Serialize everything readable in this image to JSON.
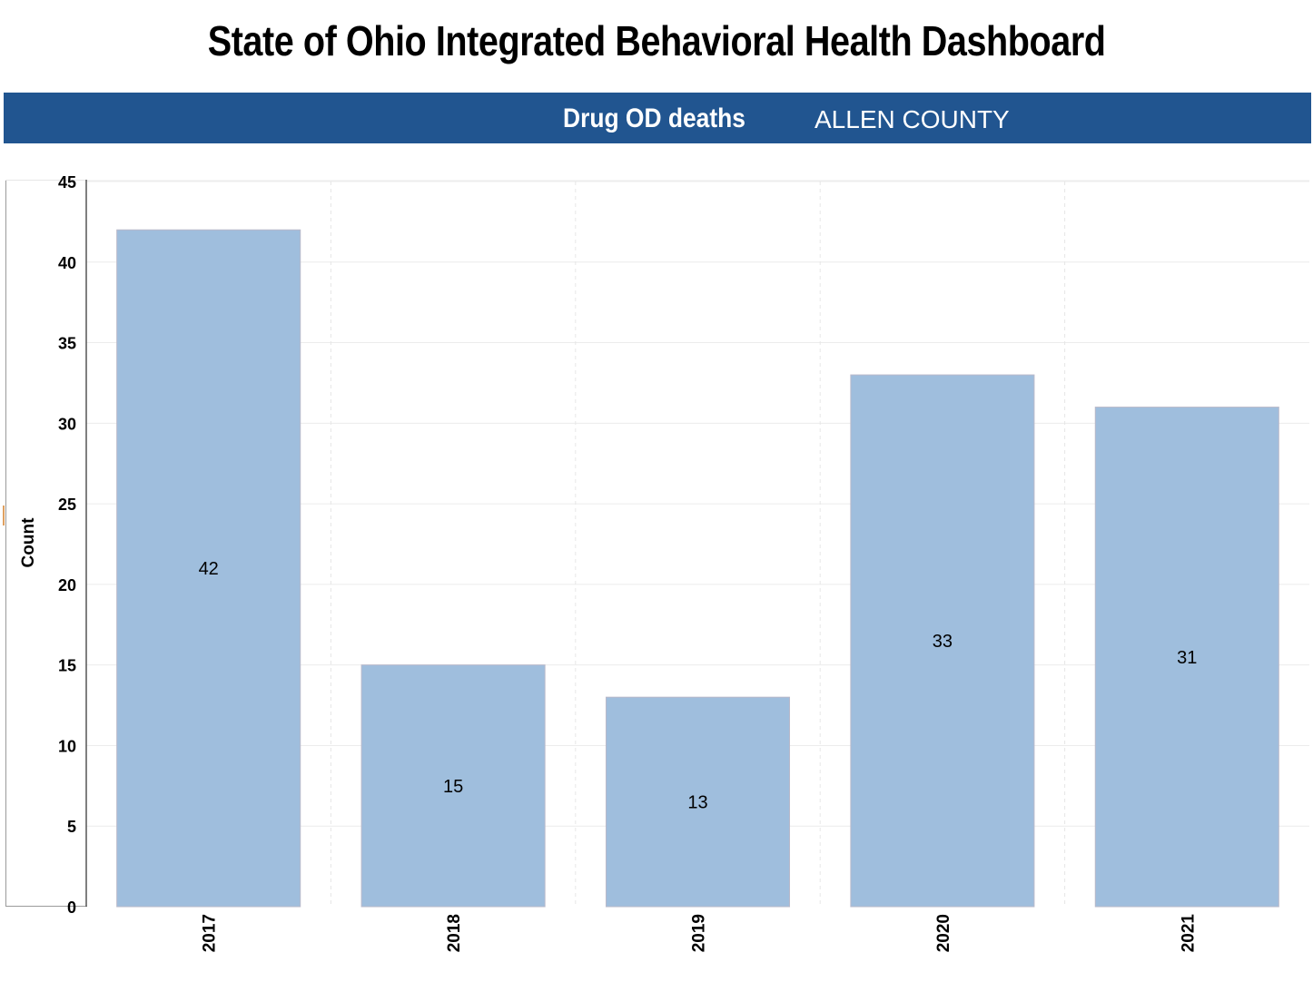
{
  "page": {
    "title": "State of Ohio Integrated Behavioral Health Dashboard"
  },
  "banner": {
    "metric": "Drug OD deaths",
    "county": "ALLEN COUNTY",
    "background_color": "#215590"
  },
  "chart_data": {
    "type": "bar",
    "categories": [
      "2017",
      "2018",
      "2019",
      "2020",
      "2021"
    ],
    "values": [
      42,
      15,
      13,
      33,
      31
    ],
    "data_labels": [
      "42",
      "15",
      "13",
      "33",
      "31"
    ],
    "xlabel": "",
    "ylabel": "Count",
    "ylim": [
      0,
      45
    ],
    "yticks": [
      0,
      5,
      10,
      15,
      20,
      25,
      30,
      35,
      40,
      45
    ],
    "ytick_labels": [
      "0",
      "5",
      "10",
      "15",
      "20",
      "25",
      "30",
      "35",
      "40",
      "45"
    ],
    "grid": true,
    "bar_color": "#9fbedd",
    "bar_edge_color": "#b9b9c9"
  }
}
